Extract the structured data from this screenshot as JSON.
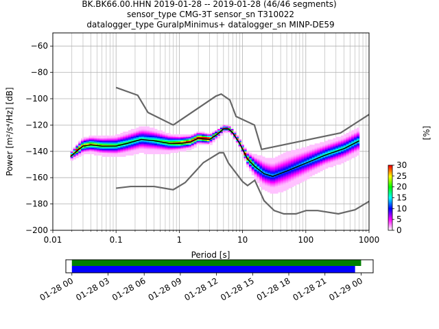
{
  "chart_data": {
    "type": "heatmap",
    "title_lines": [
      "BK.BK66.00.HHN   2019-01-28 -- 2019-01-28  (46/46 segments)",
      "sensor_type CMG-3T sensor_sn T310022",
      "datalogger_type GuralpMinimus+ datalogger_sn MINP-DE59"
    ],
    "xlabel": "Period [s]",
    "ylabel": "Power [m²/s⁴/Hz] [dB]",
    "xscale": "log",
    "xlim": [
      0.01,
      1000
    ],
    "ylim": [
      -200,
      -50
    ],
    "xticks": [
      {
        "v": 0.01,
        "label": "0.01"
      },
      {
        "v": 0.1,
        "label": "0.1"
      },
      {
        "v": 1,
        "label": "1"
      },
      {
        "v": 10,
        "label": "10"
      },
      {
        "v": 100,
        "label": "100"
      },
      {
        "v": 1000,
        "label": "1000"
      }
    ],
    "yticks": [
      {
        "v": -60,
        "label": "−60"
      },
      {
        "v": -80,
        "label": "−80"
      },
      {
        "v": -100,
        "label": "−100"
      },
      {
        "v": -120,
        "label": "−120"
      },
      {
        "v": -140,
        "label": "−140"
      },
      {
        "v": -160,
        "label": "−160"
      },
      {
        "v": -180,
        "label": "−180"
      },
      {
        "v": -200,
        "label": "−200"
      }
    ],
    "grid": true,
    "mean_curve": [
      [
        0.019,
        -144
      ],
      [
        0.025,
        -139
      ],
      [
        0.03,
        -136
      ],
      [
        0.04,
        -135
      ],
      [
        0.06,
        -136
      ],
      [
        0.1,
        -136
      ],
      [
        0.15,
        -134
      ],
      [
        0.25,
        -131
      ],
      [
        0.4,
        -132
      ],
      [
        0.7,
        -134
      ],
      [
        1,
        -134
      ],
      [
        1.5,
        -133
      ],
      [
        2,
        -130
      ],
      [
        3,
        -131
      ],
      [
        4,
        -127
      ],
      [
        5,
        -123
      ],
      [
        6,
        -123
      ],
      [
        7,
        -126
      ],
      [
        9,
        -134
      ],
      [
        12,
        -146
      ],
      [
        16,
        -152
      ],
      [
        22,
        -157
      ],
      [
        30,
        -159
      ],
      [
        50,
        -155
      ],
      [
        100,
        -149
      ],
      [
        200,
        -143
      ],
      [
        400,
        -138
      ],
      [
        700,
        -132
      ]
    ],
    "psd_spread_db": [
      [
        0.019,
        3
      ],
      [
        0.03,
        6
      ],
      [
        0.1,
        8
      ],
      [
        0.3,
        10
      ],
      [
        1,
        6
      ],
      [
        3,
        4
      ],
      [
        6,
        2
      ],
      [
        10,
        3
      ],
      [
        20,
        12
      ],
      [
        50,
        14
      ],
      [
        200,
        10
      ],
      [
        700,
        10
      ]
    ],
    "nhnm": [
      [
        0.1,
        -91.5
      ],
      [
        0.22,
        -97.4
      ],
      [
        0.32,
        -110.5
      ],
      [
        0.8,
        -120
      ],
      [
        3.8,
        -98
      ],
      [
        4.6,
        -96.5
      ],
      [
        6.3,
        -101
      ],
      [
        7.9,
        -113.5
      ],
      [
        15.4,
        -120
      ],
      [
        20,
        -138.5
      ],
      [
        354,
        -126
      ],
      [
        1000,
        -112
      ]
    ],
    "nlnm": [
      [
        0.1,
        -168
      ],
      [
        0.17,
        -166.7
      ],
      [
        0.4,
        -166.7
      ],
      [
        0.8,
        -169.2
      ],
      [
        1.24,
        -163.7
      ],
      [
        2.4,
        -148.6
      ],
      [
        4.3,
        -141.1
      ],
      [
        5,
        -141.1
      ],
      [
        6,
        -149
      ],
      [
        10,
        -163
      ],
      [
        12,
        -166
      ],
      [
        15.6,
        -162
      ],
      [
        21.9,
        -177.5
      ],
      [
        31.6,
        -185
      ],
      [
        45,
        -187.5
      ],
      [
        70,
        -187.5
      ],
      [
        101,
        -185
      ],
      [
        154,
        -185
      ],
      [
        328,
        -187.5
      ],
      [
        600,
        -184.4
      ],
      [
        1000,
        -178
      ]
    ],
    "colorbar": {
      "label": "[%]",
      "range": [
        0,
        30
      ],
      "ticks": [
        {
          "v": 0,
          "label": "0"
        },
        {
          "v": 5,
          "label": "5"
        },
        {
          "v": 10,
          "label": "10"
        },
        {
          "v": 15,
          "label": "15"
        },
        {
          "v": 20,
          "label": "20"
        },
        {
          "v": 25,
          "label": "25"
        },
        {
          "v": 30,
          "label": "30"
        }
      ],
      "colors": [
        "#ffffff",
        "#ff00ff",
        "#0000ff",
        "#00ffff",
        "#00ff00",
        "#ffff00",
        "#ff0000"
      ]
    },
    "coverage": {
      "range_hours": [
        -0.5,
        25
      ],
      "ticks": [
        {
          "v": 0,
          "label": "01-28 00"
        },
        {
          "v": 3,
          "label": "01-28 03"
        },
        {
          "v": 6,
          "label": "01-28 06"
        },
        {
          "v": 9,
          "label": "01-28 09"
        },
        {
          "v": 12,
          "label": "01-28 12"
        },
        {
          "v": 15,
          "label": "01-28 15"
        },
        {
          "v": 18,
          "label": "01-28 18"
        },
        {
          "v": 21,
          "label": "01-28 21"
        },
        {
          "v": 24,
          "label": "01-29 00"
        }
      ],
      "data_hours": [
        0,
        24
      ],
      "psd_hours": [
        0,
        23.5
      ],
      "data_color": "#008000",
      "psd_color": "#0000ff"
    }
  }
}
